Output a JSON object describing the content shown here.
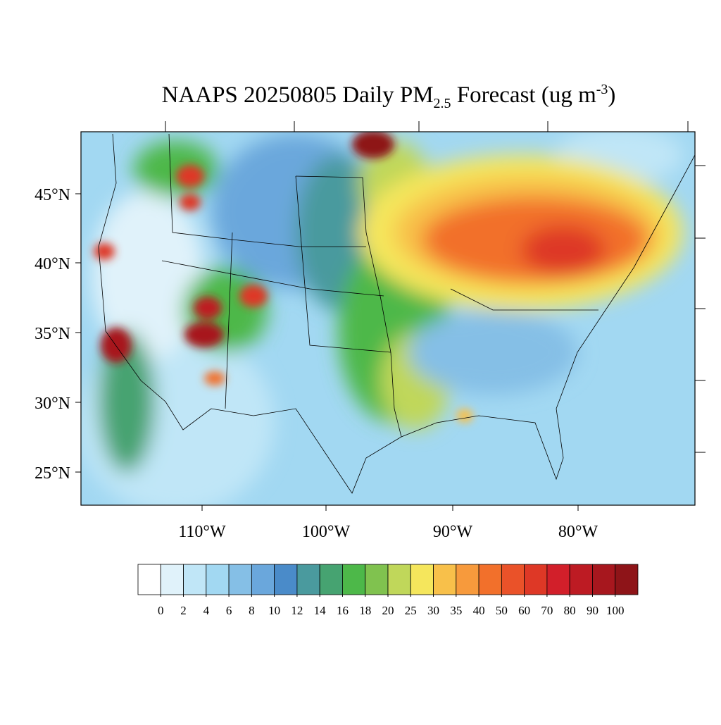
{
  "title": {
    "main": "NAAPS 20250805 Daily PM",
    "sub": "2.5",
    "mid": " Forecast (ug m",
    "sup": "-3",
    "end": ")"
  },
  "lat_labels": [
    "45°N",
    "40°N",
    "35°N",
    "30°N",
    "25°N"
  ],
  "lon_labels": [
    "110°W",
    "100°W",
    "90°W",
    "80°W"
  ],
  "colorbar": {
    "levels": [
      0,
      2,
      4,
      6,
      8,
      10,
      12,
      14,
      16,
      18,
      20,
      25,
      30,
      35,
      40,
      50,
      60,
      70,
      80,
      90,
      100
    ],
    "colors": [
      "#ffffff",
      "#e0f2fa",
      "#c0e6f7",
      "#a2d8f2",
      "#85bfe6",
      "#6aa7dc",
      "#4a8bc9",
      "#4a9a9e",
      "#46a371",
      "#4db849",
      "#80c24f",
      "#c0d75a",
      "#f5e65c",
      "#f8c04a",
      "#f79a3c",
      "#f2702b",
      "#ea5229",
      "#de3826",
      "#d21f2a",
      "#bd1b23",
      "#a7171e",
      "#8e1418"
    ]
  }
}
